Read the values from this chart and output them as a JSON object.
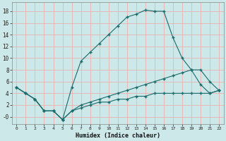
{
  "xlabel": "Humidex (Indice chaleur)",
  "bg_color": "#cce8e8",
  "grid_color": "#e8b0b0",
  "line_color": "#1a6b6b",
  "xlim": [
    -0.5,
    22.5
  ],
  "ylim": [
    -1.2,
    19.5
  ],
  "xticks": [
    0,
    1,
    2,
    3,
    4,
    5,
    6,
    7,
    8,
    9,
    10,
    11,
    12,
    13,
    14,
    15,
    16,
    17,
    18,
    19,
    20,
    21,
    22
  ],
  "yticks": [
    0,
    2,
    4,
    6,
    8,
    10,
    12,
    14,
    16,
    18
  ],
  "ytick_labels": [
    "-0",
    "2",
    "4",
    "6",
    "8",
    "10",
    "12",
    "14",
    "16",
    "18"
  ],
  "line1_x": [
    0,
    1,
    2,
    3,
    4,
    5,
    6,
    7,
    8,
    9,
    10,
    11,
    12,
    13,
    14,
    15,
    16,
    17,
    18,
    19,
    20,
    21,
    22
  ],
  "line1_y": [
    5,
    4,
    3,
    1,
    1,
    -0.5,
    5,
    9.5,
    11,
    12.5,
    14,
    15.5,
    17,
    17.5,
    18.2,
    18,
    18,
    13.5,
    10,
    8,
    5.5,
    4,
    4.5
  ],
  "line2_x": [
    0,
    1,
    2,
    3,
    4,
    5,
    6,
    7,
    8,
    9,
    10,
    11,
    12,
    13,
    14,
    15,
    16,
    17,
    18,
    19,
    20,
    21,
    22
  ],
  "line2_y": [
    5,
    4,
    3,
    1,
    1,
    -0.5,
    1,
    2,
    2.5,
    3,
    3.5,
    4,
    4.5,
    5,
    5.5,
    6,
    6.5,
    7,
    7.5,
    8,
    8,
    6,
    4.5
  ],
  "line3_x": [
    0,
    1,
    2,
    3,
    4,
    5,
    6,
    7,
    8,
    9,
    10,
    11,
    12,
    13,
    14,
    15,
    16,
    17,
    18,
    19,
    20,
    21,
    22
  ],
  "line3_y": [
    5,
    4,
    3,
    1,
    1,
    -0.5,
    1,
    1.5,
    2,
    2.5,
    2.5,
    3,
    3,
    3.5,
    3.5,
    4,
    4,
    4,
    4,
    4,
    4,
    4,
    4.5
  ]
}
